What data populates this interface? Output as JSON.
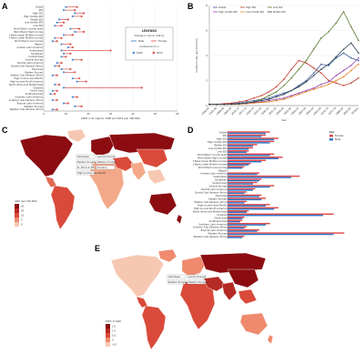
{
  "panels": {
    "a": "A",
    "b": "B",
    "c": "C",
    "d": "D",
    "e": "E"
  },
  "colors": {
    "male": "#2d77c7",
    "female": "#e0494d",
    "y1990": "#4a90d9",
    "y2019": "#d9534f",
    "global": "#3b5998",
    "highsdi": "#c0392b",
    "lowsdi": "#5b7a2e",
    "highmiddle": "#8e44ad",
    "lowmiddle": "#e67e22",
    "middle": "#2c3e50",
    "map_dark": "#8b0d12",
    "map_mid": "#d94a3a",
    "map_light": "#f6c8b2",
    "map_land": "#c8c8c8"
  },
  "chart_data": [
    {
      "type": "scatter",
      "panel": "A",
      "title": "",
      "xlabel": "ASDR in 21 regions, 1990 and 2019 (per 100,000)",
      "ylabel": "",
      "legend": {
        "title": "LEGENDS",
        "subtitle": "Change in cancer rate by",
        "items": [
          "Male",
          "Female"
        ],
        "subtitle2": "Contains born in",
        "years": [
          "1990",
          "2019"
        ],
        "placement": "top-right"
      },
      "xlim": [
        0,
        60
      ],
      "xticks": [
        "0",
        "10",
        "20",
        "30",
        "40",
        "50",
        "60"
      ],
      "categories": [
        "Global",
        "SDI",
        "High SDI",
        "High-middle SDI",
        "Middle SDI",
        "Low-middle SDI",
        "Low SDI",
        "World Bank income level",
        "World Bank High Income",
        "World Bank Upper Middle Income",
        "World Bank Lower Middle Income",
        "World Bank Low Income",
        "Region",
        "Andean Latin America",
        "Australasia",
        "Caribbean",
        "Central Asia",
        "Central Europe",
        "Central Latin America",
        "Central Sub-Saharan Africa",
        "East Asia",
        "Eastern Europe",
        "Eastern Sub-Saharan Africa",
        "High-income Asia Pacific",
        "High-income North America",
        "North Africa and Middle East",
        "Oceania",
        "South Asia",
        "Southeast Asia",
        "Southern Latin America",
        "Southern Sub-Saharan Africa",
        "Tropical Latin America",
        "Western Europe",
        "Western Sub-Saharan Africa"
      ],
      "series": [
        {
          "name": "1990",
          "values": [
            10,
            9,
            14,
            13,
            7,
            6,
            5,
            12,
            14,
            9,
            5,
            4,
            8,
            11,
            8,
            9,
            8,
            13,
            6,
            5,
            8,
            9,
            4,
            13,
            15,
            5,
            9,
            4,
            3,
            13,
            4,
            9,
            14,
            4
          ]
        },
        {
          "name": "2019",
          "values": [
            15,
            14,
            18,
            17,
            11,
            9,
            8,
            16,
            18,
            13,
            8,
            6,
            12,
            13,
            30,
            12,
            10,
            17,
            8,
            7,
            12,
            14,
            6,
            16,
            19,
            7,
            44,
            6,
            5,
            15,
            6,
            11,
            17,
            6
          ]
        }
      ]
    },
    {
      "type": "line",
      "panel": "B",
      "title": "",
      "xlabel": "Year",
      "ylabel": "Incidence rate (per 100,000)",
      "ylim": [
        0,
        8
      ],
      "grid": true,
      "legend_placement": "top-left",
      "categories": [
        "1990-94",
        "1995-99",
        "2000-04",
        "2005-09",
        "2010-14",
        "2015-19",
        "2020-24",
        "2025-29",
        "2030-34",
        "2035-39",
        "2040-44",
        "2045-49",
        "2050-54",
        "2055-59",
        "2060-64",
        "2065-69",
        "2070-74",
        "2075-79",
        "2080-84",
        "2085-89",
        "90 plus"
      ],
      "series": [
        {
          "name": "Global",
          "values": [
            0.1,
            0.1,
            0.1,
            0.15,
            0.2,
            0.3,
            0.4,
            0.5,
            0.6,
            0.8,
            1.0,
            1.2,
            1.6,
            2.0,
            2.6,
            3.3,
            3.2,
            3.8,
            4.2,
            3.8,
            3.6
          ]
        },
        {
          "name": "High SDI",
          "values": [
            0.1,
            0.1,
            0.15,
            0.2,
            0.3,
            0.4,
            0.6,
            0.8,
            1.1,
            1.5,
            2.1,
            2.9,
            3.6,
            3.4,
            3.0,
            2.6,
            2.0,
            1.8,
            1.6,
            1.8,
            2.2
          ]
        },
        {
          "name": "Low SDI",
          "values": [
            0.1,
            0.1,
            0.1,
            0.12,
            0.15,
            0.2,
            0.3,
            0.5,
            0.8,
            1.1,
            1.6,
            2.2,
            2.9,
            3.6,
            4.5,
            5.4,
            5.9,
            6.6,
            7.5,
            6.3,
            5.2
          ]
        },
        {
          "name": "High-middle SDI",
          "values": [
            0.1,
            0.1,
            0.1,
            0.12,
            0.15,
            0.2,
            0.25,
            0.3,
            0.4,
            0.5,
            0.6,
            0.8,
            1.0,
            1.2,
            1.4,
            1.7,
            1.9,
            2.4,
            2.8,
            3.2,
            3.8
          ]
        },
        {
          "name": "Low-middle SDI",
          "values": [
            0.1,
            0.1,
            0.1,
            0.1,
            0.12,
            0.15,
            0.2,
            0.25,
            0.3,
            0.4,
            0.5,
            0.7,
            0.9,
            1.1,
            1.3,
            1.5,
            1.7,
            2.0,
            2.3,
            2.8,
            3.3
          ]
        },
        {
          "name": "Middle SDI",
          "values": [
            0.1,
            0.1,
            0.1,
            0.12,
            0.14,
            0.2,
            0.3,
            0.4,
            0.5,
            0.7,
            0.9,
            1.2,
            1.5,
            1.9,
            2.4,
            2.9,
            3.3,
            3.9,
            4.5,
            5.0,
            4.2
          ]
        }
      ]
    },
    {
      "type": "bar",
      "panel": "D",
      "title": "",
      "xlabel": "",
      "legend": {
        "title": "Sex",
        "items": [
          "Female",
          "Male"
        ],
        "placement": "top-right"
      },
      "xlim": [
        0,
        60
      ],
      "categories": [
        "Global",
        "SDI",
        "High SDI",
        "High-middle SDI",
        "Middle SDI",
        "Low-middle SDI",
        "Low SDI",
        "World Bank income level",
        "World Bank High Income",
        "World Bank Upper Middle Income",
        "World Bank Lower Middle Income",
        "World Bank Low Income",
        "Region",
        "Andean Latin America",
        "Australasia",
        "Caribbean",
        "Central Asia",
        "Central Europe",
        "Central Latin America",
        "Central Sub-Saharan Africa",
        "East Asia",
        "Eastern Europe",
        "Eastern Sub-Saharan Africa",
        "High-income Asia Pacific",
        "High-income North America",
        "North Africa and Middle East",
        "Oceania",
        "South Asia",
        "Southeast Asia",
        "Southern Latin America",
        "Southern Sub-Saharan Africa",
        "Tropical Latin America",
        "Western Europe",
        "Western Sub-Saharan Africa"
      ],
      "series": [
        {
          "name": "Female",
          "values": [
            20,
            18,
            24,
            22,
            14,
            12,
            10,
            22,
            26,
            18,
            11,
            8,
            0,
            15,
            34,
            16,
            14,
            22,
            13,
            9,
            16,
            18,
            9,
            20,
            24,
            10,
            50,
            8,
            7,
            20,
            9,
            15,
            55,
            8
          ]
        },
        {
          "name": "Male",
          "values": [
            18,
            16,
            22,
            20,
            12,
            10,
            9,
            20,
            24,
            16,
            10,
            7,
            0,
            14,
            30,
            15,
            12,
            20,
            12,
            8,
            15,
            16,
            8,
            18,
            22,
            9,
            45,
            7,
            6,
            18,
            8,
            14,
            50,
            7
          ]
        }
      ]
    },
    {
      "type": "heatmap",
      "panel": "C",
      "title": "",
      "legend": {
        "title": "ASIR (per 100,000)",
        "levels": [
          "30",
          "20",
          "10",
          "5",
          "0"
        ],
        "placement": "bottom-left"
      },
      "callouts": [
        "Caribbean",
        "Central Europe",
        "Eastern Europe",
        "Western Europe",
        "N. Africa & ME",
        "Oceania",
        "High-income Asia Pacific"
      ]
    },
    {
      "type": "heatmap",
      "panel": "E",
      "title": "",
      "legend": {
        "title": "EAPC of ASIR",
        "levels": [
          "2.5",
          "1.5",
          "0.5",
          "0",
          "-0.5"
        ],
        "placement": "bottom-left"
      },
      "callouts": [
        "Caribbean",
        "Central Europe",
        "Eastern Europe",
        "Western Europe"
      ]
    }
  ]
}
